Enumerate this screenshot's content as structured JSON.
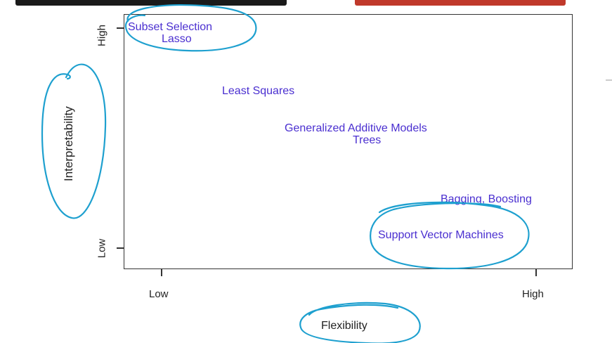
{
  "diagram": {
    "y_axis": {
      "title": "Interpretability",
      "high_label": "High",
      "low_label": "Low"
    },
    "x_axis": {
      "title": "Flexibility",
      "low_label": "Low",
      "high_label": "High"
    },
    "methods": [
      {
        "id": "subset-selection",
        "label": "Subset Selection"
      },
      {
        "id": "lasso",
        "label": "Lasso"
      },
      {
        "id": "least-squares",
        "label": "Least Squares"
      },
      {
        "id": "gam",
        "label": "Generalized Additive Models"
      },
      {
        "id": "trees",
        "label": "Trees"
      },
      {
        "id": "bagging-boosting",
        "label": "Bagging, Boosting"
      },
      {
        "id": "svm",
        "label": "Support Vector Machines"
      }
    ]
  },
  "colors": {
    "method_text": "#4a2fd0",
    "annotation_ink": "#1ea0cf",
    "axis": "#333333",
    "banner_dark": "#1a1a1a",
    "banner_red": "#c0392b"
  }
}
